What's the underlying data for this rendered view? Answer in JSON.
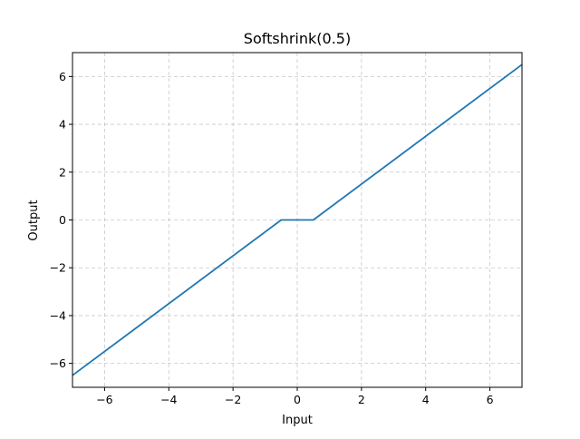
{
  "chart_data": {
    "type": "line",
    "title": "Softshrink(0.5)",
    "xlabel": "Input",
    "ylabel": "Output",
    "xlim": [
      -7,
      7
    ],
    "ylim": [
      -7,
      7
    ],
    "xticks": [
      -6,
      -4,
      -2,
      0,
      2,
      4,
      6
    ],
    "yticks": [
      -6,
      -4,
      -2,
      0,
      2,
      4,
      6
    ],
    "xtick_labels": [
      "−6",
      "−4",
      "−2",
      "0",
      "2",
      "4",
      "6"
    ],
    "ytick_labels": [
      "−6",
      "−4",
      "−2",
      "0",
      "2",
      "4",
      "6"
    ],
    "grid": true,
    "grid_style": "dashed",
    "series": [
      {
        "color": "#1f77b4",
        "x": [
          -7,
          -0.5,
          0.5,
          7
        ],
        "y": [
          -6.5,
          0,
          0,
          6.5
        ]
      }
    ]
  }
}
